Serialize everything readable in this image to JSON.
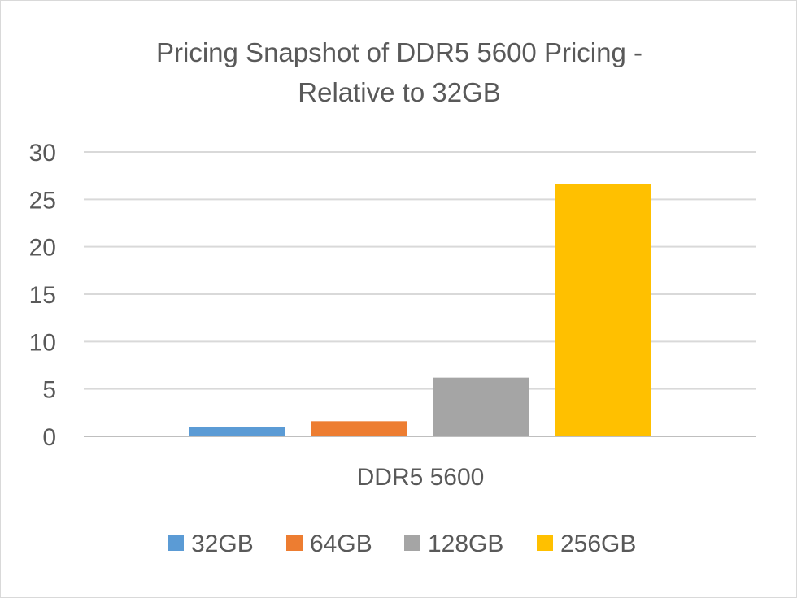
{
  "chart_data": {
    "type": "bar",
    "title": "Pricing Snapshot of DDR5 5600 Pricing - Relative to 32GB",
    "title_lines": [
      "Pricing Snapshot of DDR5 5600 Pricing -",
      "Relative to 32GB"
    ],
    "categories": [
      "DDR5 5600"
    ],
    "series": [
      {
        "name": "32GB",
        "values": [
          1.0
        ],
        "color": "#5b9bd5"
      },
      {
        "name": "64GB",
        "values": [
          1.6
        ],
        "color": "#ed7d31"
      },
      {
        "name": "128GB",
        "values": [
          6.2
        ],
        "color": "#a5a5a5"
      },
      {
        "name": "256GB",
        "values": [
          26.6
        ],
        "color": "#ffc000"
      }
    ],
    "xlabel": "",
    "ylabel": "",
    "ylim": [
      0,
      30
    ],
    "yticks": [
      0,
      5,
      10,
      15,
      20,
      25,
      30
    ],
    "grid": true,
    "legend_position": "bottom"
  }
}
